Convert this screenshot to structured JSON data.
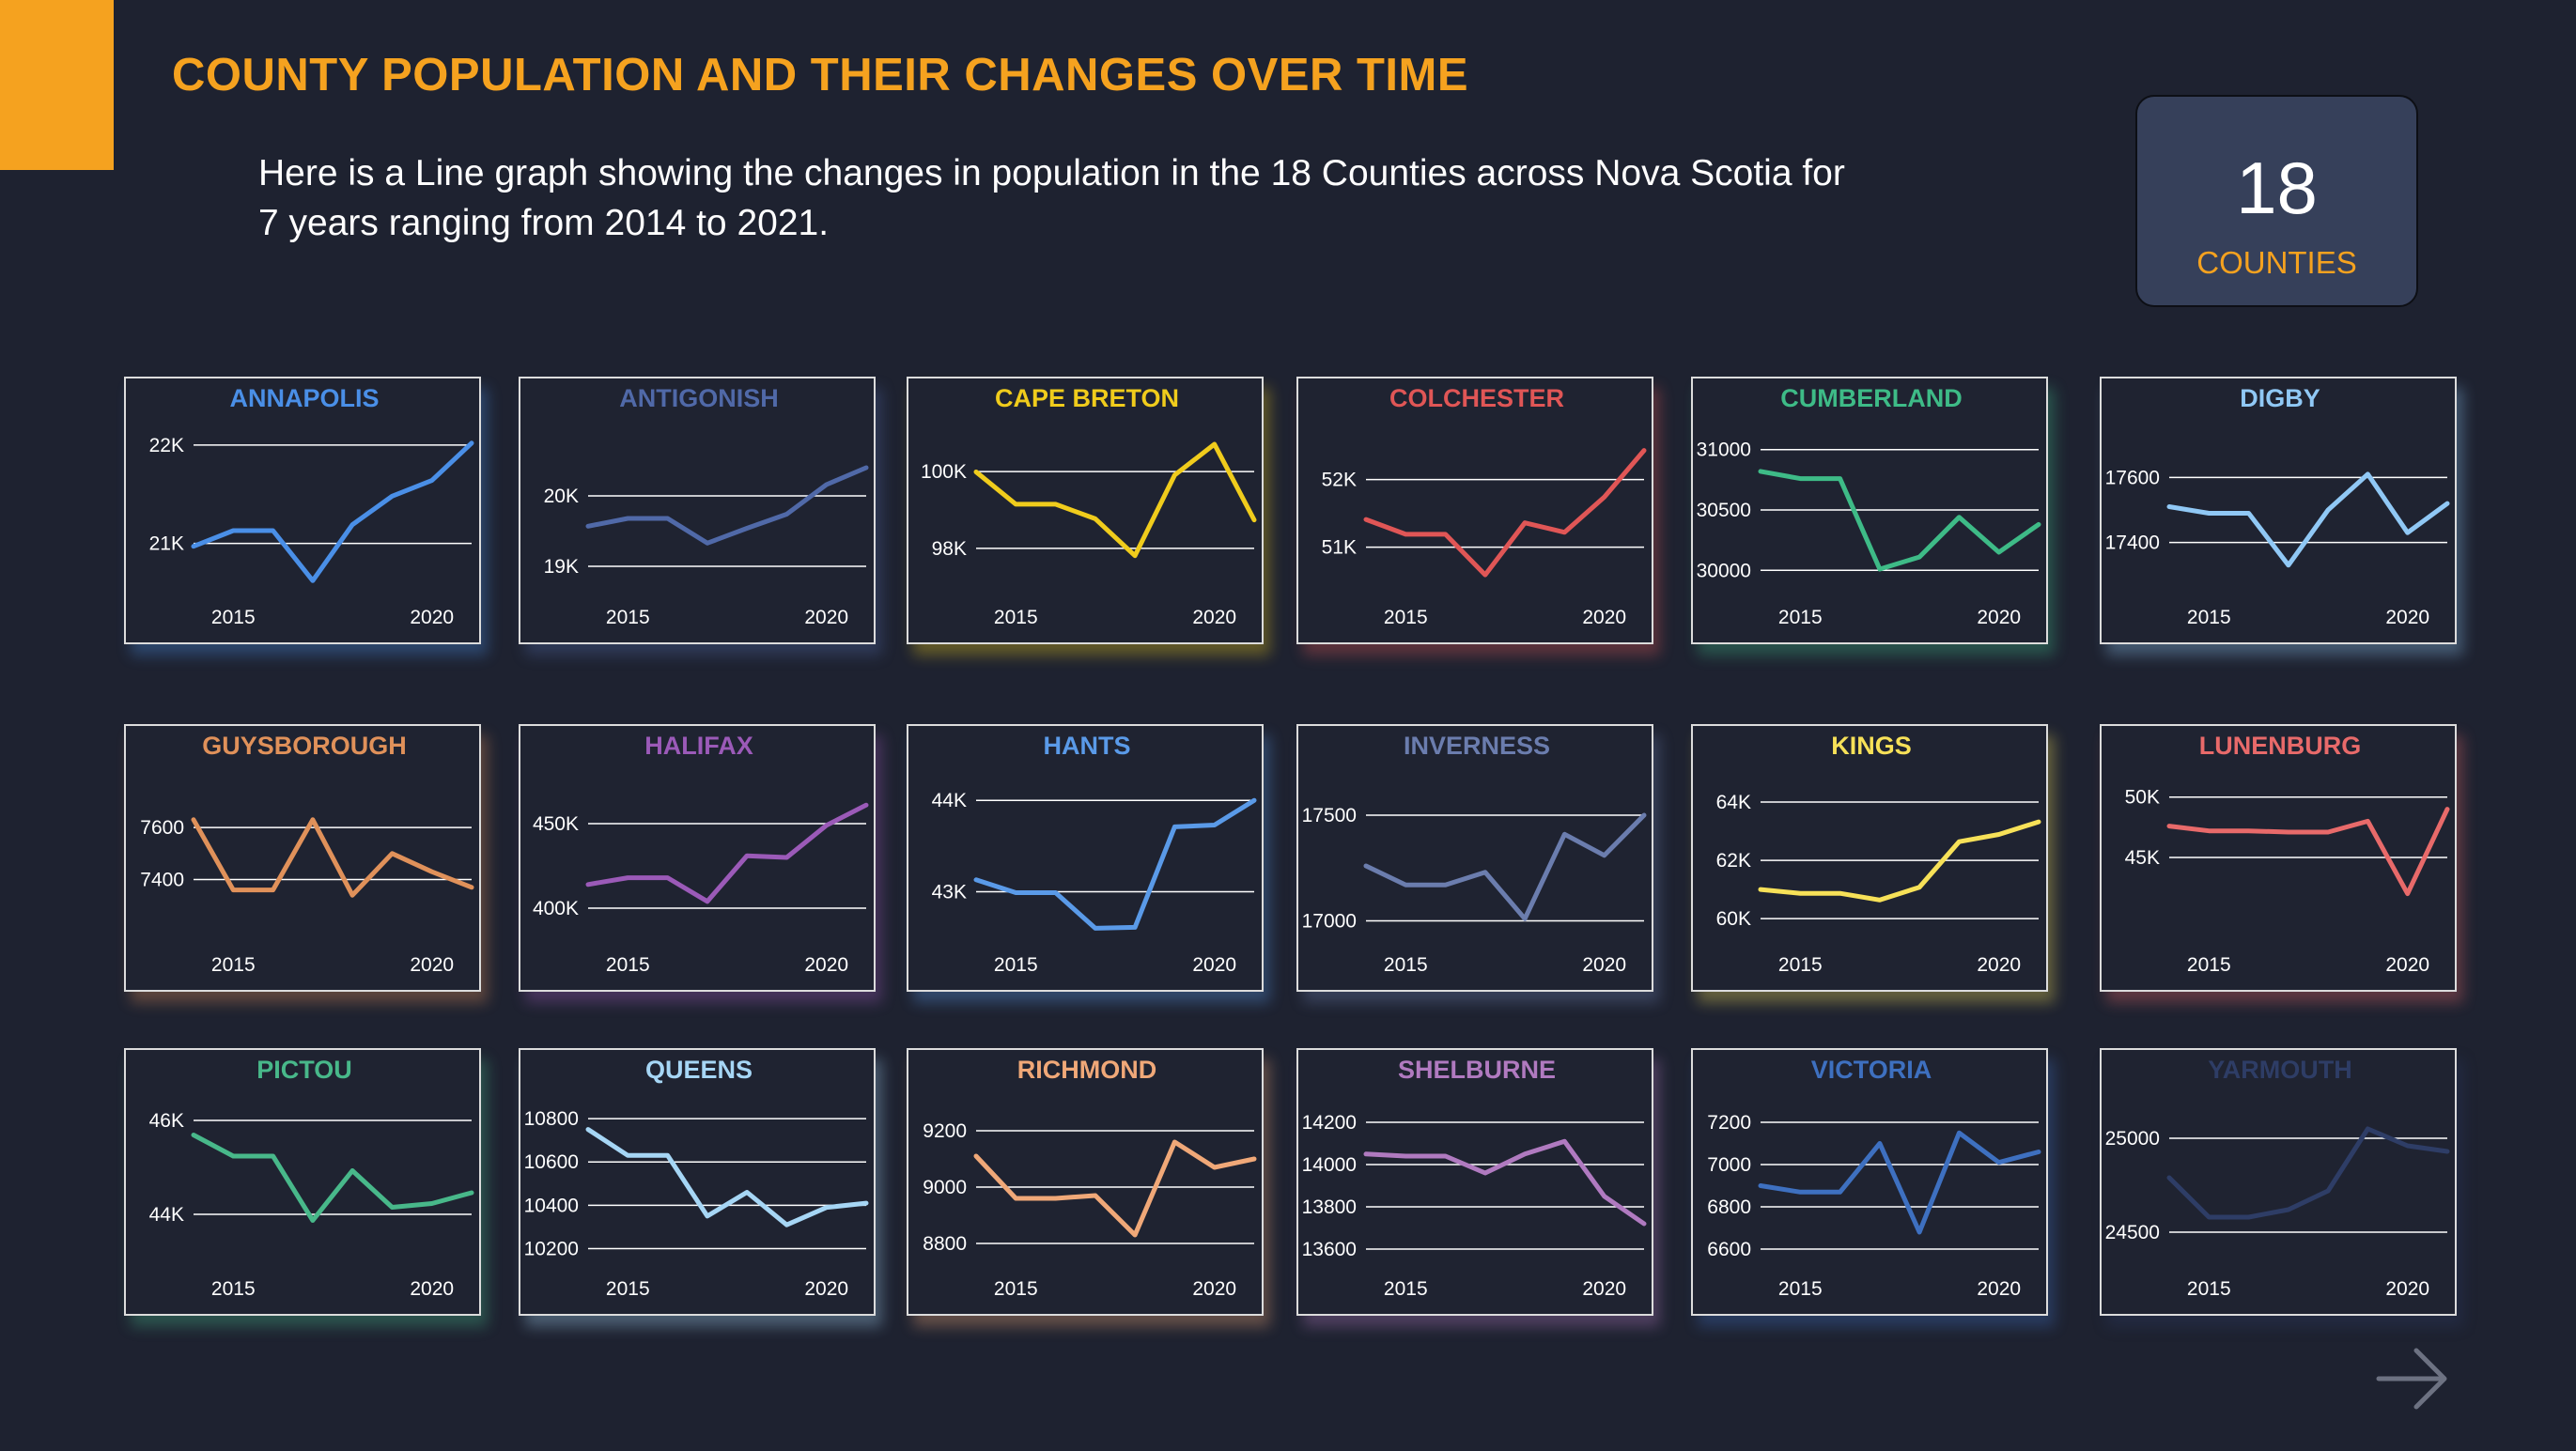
{
  "header": {
    "title": "COUNTY POPULATION AND THEIR CHANGES OVER TIME",
    "subtitle": "Here is a Line graph showing the changes in population in the 18 Counties across Nova Scotia for 7 years ranging from 2014 to 2021."
  },
  "kpi": {
    "value": "18",
    "label": "COUNTIES"
  },
  "colors": {
    "accent": "#f5a21f",
    "background": "#1e2230",
    "card_border": "#dcdcdc",
    "gridline": "#ffffff"
  },
  "navigation": {
    "next_icon": "arrow-right-icon"
  },
  "chart_data": [
    {
      "type": "line",
      "title": "ANNAPOLIS",
      "color": "#4a8fe7",
      "x": [
        2014,
        2015,
        2016,
        2017,
        2018,
        2019,
        2020,
        2021
      ],
      "values": [
        20970,
        21130,
        21130,
        20620,
        21190,
        21480,
        21640,
        22020
      ],
      "ylim": [
        20480,
        22200
      ],
      "yticks": [
        21000,
        22000
      ],
      "ytick_labels": [
        "21K",
        "22K"
      ],
      "xticks": [
        2015,
        2020
      ],
      "xtick_labels": [
        "2015",
        "2020"
      ]
    },
    {
      "type": "line",
      "title": "ANTIGONISH",
      "color": "#5069a8",
      "x": [
        2014,
        2015,
        2016,
        2017,
        2018,
        2019,
        2020,
        2021
      ],
      "values": [
        19570,
        19680,
        19680,
        19330,
        19540,
        19740,
        20160,
        20400
      ],
      "ylim": [
        18600,
        21000
      ],
      "yticks": [
        19000,
        20000
      ],
      "ytick_labels": [
        "19K",
        "20K"
      ],
      "xticks": [
        2015,
        2020
      ],
      "xtick_labels": [
        "2015",
        "2020"
      ]
    },
    {
      "type": "line",
      "title": "CAPE BRETON",
      "color": "#f0cc1c",
      "x": [
        2014,
        2015,
        2016,
        2017,
        2018,
        2019,
        2020,
        2021
      ],
      "values": [
        99990,
        99150,
        99150,
        98770,
        97810,
        99910,
        100710,
        98740
      ],
      "ylim": [
        96800,
        101200
      ],
      "yticks": [
        98000,
        100000
      ],
      "ytick_labels": [
        "98K",
        "100K"
      ],
      "xticks": [
        2015,
        2020
      ],
      "xtick_labels": [
        "2015",
        "2020"
      ]
    },
    {
      "type": "line",
      "title": "COLCHESTER",
      "color": "#e05656",
      "x": [
        2014,
        2015,
        2016,
        2017,
        2018,
        2019,
        2020,
        2021
      ],
      "values": [
        51410,
        51190,
        51190,
        50590,
        51360,
        51220,
        51740,
        52430
      ],
      "ylim": [
        50300,
        52800
      ],
      "yticks": [
        51000,
        52000
      ],
      "ytick_labels": [
        "51K",
        "52K"
      ],
      "xticks": [
        2015,
        2020
      ],
      "xtick_labels": [
        "2015",
        "2020"
      ]
    },
    {
      "type": "line",
      "title": "CUMBERLAND",
      "color": "#3ebb87",
      "x": [
        2014,
        2015,
        2016,
        2017,
        2018,
        2019,
        2020,
        2021
      ],
      "values": [
        30820,
        30760,
        30760,
        30010,
        30110,
        30440,
        30150,
        30380
      ],
      "ylim": [
        29800,
        31200
      ],
      "yticks": [
        30000,
        30500,
        31000
      ],
      "ytick_labels": [
        "30000",
        "30500",
        "31000"
      ],
      "xticks": [
        2015,
        2020
      ],
      "xtick_labels": [
        "2015",
        "2020"
      ]
    },
    {
      "type": "line",
      "title": "DIGBY",
      "color": "#90c8f5",
      "x": [
        2014,
        2015,
        2016,
        2017,
        2018,
        2019,
        2020,
        2021
      ],
      "values": [
        17510,
        17490,
        17490,
        17330,
        17500,
        17610,
        17430,
        17520
      ],
      "ylim": [
        17240,
        17760
      ],
      "yticks": [
        17400,
        17600
      ],
      "ytick_labels": [
        "17400",
        "17600"
      ],
      "xticks": [
        2015,
        2020
      ],
      "xtick_labels": [
        "2015",
        "2020"
      ]
    },
    {
      "type": "line",
      "title": "GUYSBOROUGH",
      "color": "#e0915a",
      "x": [
        2014,
        2015,
        2016,
        2017,
        2018,
        2019,
        2020,
        2021
      ],
      "values": [
        7630,
        7360,
        7360,
        7630,
        7340,
        7500,
        7430,
        7370
      ],
      "ylim": [
        7160,
        7810
      ],
      "yticks": [
        7400,
        7600
      ],
      "ytick_labels": [
        "7400",
        "7600"
      ],
      "xticks": [
        2015,
        2020
      ],
      "xtick_labels": [
        "2015",
        "2020"
      ]
    },
    {
      "type": "line",
      "title": "HALIFAX",
      "color": "#9b5ab8",
      "x": [
        2014,
        2015,
        2016,
        2017,
        2018,
        2019,
        2020,
        2021
      ],
      "values": [
        414000,
        418000,
        418000,
        404000,
        431000,
        430000,
        449000,
        461000
      ],
      "ylim": [
        380000,
        480000
      ],
      "yticks": [
        400000,
        450000
      ],
      "ytick_labels": [
        "400K",
        "450K"
      ],
      "xticks": [
        2015,
        2020
      ],
      "xtick_labels": [
        "2015",
        "2020"
      ]
    },
    {
      "type": "line",
      "title": "HANTS",
      "color": "#5a9ae8",
      "x": [
        2014,
        2015,
        2016,
        2017,
        2018,
        2019,
        2020,
        2021
      ],
      "values": [
        43130,
        42990,
        42990,
        42600,
        42610,
        43710,
        43730,
        44000
      ],
      "ylim": [
        42450,
        44300
      ],
      "yticks": [
        43000,
        44000
      ],
      "ytick_labels": [
        "43K",
        "44K"
      ],
      "xticks": [
        2015,
        2020
      ],
      "xtick_labels": [
        "2015",
        "2020"
      ]
    },
    {
      "type": "line",
      "title": "INVERNESS",
      "color": "#6b7dae",
      "x": [
        2014,
        2015,
        2016,
        2017,
        2018,
        2019,
        2020,
        2021
      ],
      "values": [
        17260,
        17170,
        17170,
        17230,
        17010,
        17410,
        17310,
        17500
      ],
      "ylim": [
        16900,
        17700
      ],
      "yticks": [
        17000,
        17500
      ],
      "ytick_labels": [
        "17000",
        "17500"
      ],
      "xticks": [
        2015,
        2020
      ],
      "xtick_labels": [
        "2015",
        "2020"
      ]
    },
    {
      "type": "line",
      "title": "KINGS",
      "color": "#f7e158",
      "x": [
        2014,
        2015,
        2016,
        2017,
        2018,
        2019,
        2020,
        2021
      ],
      "values": [
        61000,
        60870,
        60870,
        60640,
        61080,
        62640,
        62890,
        63320
      ],
      "ylim": [
        59200,
        65000
      ],
      "yticks": [
        60000,
        62000,
        64000
      ],
      "ytick_labels": [
        "60K",
        "62K",
        "64K"
      ],
      "xticks": [
        2015,
        2020
      ],
      "xtick_labels": [
        "2015",
        "2020"
      ]
    },
    {
      "type": "line",
      "title": "LUNENBURG",
      "color": "#e86a6a",
      "x": [
        2014,
        2015,
        2016,
        2017,
        2018,
        2019,
        2020,
        2021
      ],
      "values": [
        47600,
        47200,
        47200,
        47100,
        47100,
        48000,
        42000,
        49000
      ],
      "ylim": [
        38000,
        52000
      ],
      "yticks": [
        45000,
        50000
      ],
      "ytick_labels": [
        "45K",
        "50K"
      ],
      "xticks": [
        2015,
        2020
      ],
      "xtick_labels": [
        "2015",
        "2020"
      ]
    },
    {
      "type": "line",
      "title": "PICTOU",
      "color": "#48b88a",
      "x": [
        2014,
        2015,
        2016,
        2017,
        2018,
        2019,
        2020,
        2021
      ],
      "values": [
        45690,
        45240,
        45240,
        43870,
        44930,
        44150,
        44230,
        44460
      ],
      "ylim": [
        42900,
        46500
      ],
      "yticks": [
        44000,
        46000
      ],
      "ytick_labels": [
        "44K",
        "46K"
      ],
      "xticks": [
        2015,
        2020
      ],
      "xtick_labels": [
        "2015",
        "2020"
      ]
    },
    {
      "type": "line",
      "title": "QUEENS",
      "color": "#a6d6f5",
      "x": [
        2014,
        2015,
        2016,
        2017,
        2018,
        2019,
        2020,
        2021
      ],
      "values": [
        10750,
        10630,
        10630,
        10350,
        10460,
        10310,
        10390,
        10410
      ],
      "ylim": [
        10120,
        10900
      ],
      "yticks": [
        10200,
        10400,
        10600,
        10800
      ],
      "ytick_labels": [
        "10200",
        "10400",
        "10600",
        "10800"
      ],
      "xticks": [
        2015,
        2020
      ],
      "xtick_labels": [
        "2015",
        "2020"
      ]
    },
    {
      "type": "line",
      "title": "RICHMOND",
      "color": "#f0a878",
      "x": [
        2014,
        2015,
        2016,
        2017,
        2018,
        2019,
        2020,
        2021
      ],
      "values": [
        9110,
        8960,
        8960,
        8970,
        8830,
        9160,
        9070,
        9100
      ],
      "ylim": [
        8720,
        9320
      ],
      "yticks": [
        8800,
        9000,
        9200
      ],
      "ytick_labels": [
        "8800",
        "9000",
        "9200"
      ],
      "xticks": [
        2015,
        2020
      ],
      "xtick_labels": [
        "2015",
        "2020"
      ]
    },
    {
      "type": "line",
      "title": "SHELBURNE",
      "color": "#b07ac0",
      "x": [
        2014,
        2015,
        2016,
        2017,
        2018,
        2019,
        2020,
        2021
      ],
      "values": [
        14050,
        14040,
        14040,
        13960,
        14050,
        14110,
        13850,
        13720
      ],
      "ylim": [
        13520,
        14320
      ],
      "yticks": [
        13600,
        13800,
        14000,
        14200
      ],
      "ytick_labels": [
        "13600",
        "13800",
        "14000",
        "14200"
      ],
      "xticks": [
        2015,
        2020
      ],
      "xtick_labels": [
        "2015",
        "2020"
      ]
    },
    {
      "type": "line",
      "title": "VICTORIA",
      "color": "#3e70c0",
      "x": [
        2014,
        2015,
        2016,
        2017,
        2018,
        2019,
        2020,
        2021
      ],
      "values": [
        6900,
        6870,
        6870,
        7100,
        6680,
        7150,
        7010,
        7060
      ],
      "ylim": [
        6520,
        7320
      ],
      "yticks": [
        6600,
        6800,
        7000,
        7200
      ],
      "ytick_labels": [
        "6600",
        "6800",
        "7000",
        "7200"
      ],
      "xticks": [
        2015,
        2020
      ],
      "xtick_labels": [
        "2015",
        "2020"
      ]
    },
    {
      "type": "line",
      "title": "YARMOUTH",
      "color": "#2e3d66",
      "x": [
        2014,
        2015,
        2016,
        2017,
        2018,
        2019,
        2020,
        2021
      ],
      "values": [
        24790,
        24580,
        24580,
        24620,
        24720,
        25050,
        24960,
        24930
      ],
      "ylim": [
        24320,
        25220
      ],
      "yticks": [
        24500,
        25000
      ],
      "ytick_labels": [
        "24500",
        "25000"
      ],
      "xticks": [
        2015,
        2020
      ],
      "xtick_labels": [
        "2015",
        "2020"
      ]
    }
  ]
}
